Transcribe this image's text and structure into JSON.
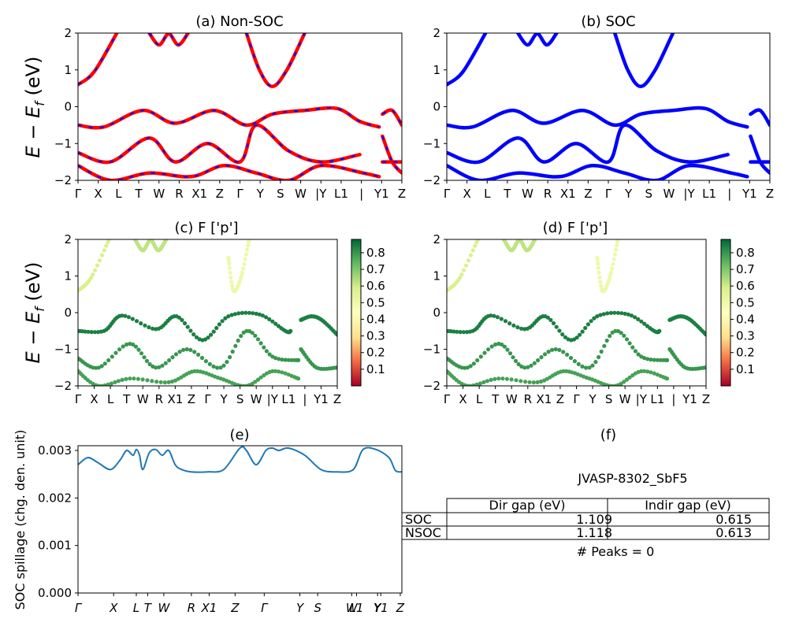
{
  "figure": {
    "ylabel_band": "E − E",
    "ylabel_band_sub": "f",
    "ylabel_band_unit": " (eV)",
    "ylabel_spillage": "SOC spillage (chg. den. unit)"
  },
  "colors": {
    "nonsoc_line": "#ff0000",
    "nonsoc_dash": "#0000ff",
    "soc_line": "#0000ff",
    "spillage_line": "#1f77b4",
    "colormap": [
      "#a50026",
      "#f46d43",
      "#fee08b",
      "#ffffbf",
      "#d9ef8b",
      "#66bd63",
      "#006837"
    ]
  },
  "kpath_ticks": {
    "top": [
      "Γ",
      "X",
      "L",
      "T",
      "W",
      "R",
      "X1",
      "Z",
      "Γ",
      "Y",
      "S",
      "W",
      "|Y",
      "L1",
      "|",
      "Y1",
      "Z"
    ],
    "bottom": [
      "Γ",
      "X",
      "L",
      "T",
      "W",
      "R",
      "X1",
      "Z",
      "Γ",
      "Y",
      "S",
      "W",
      "L1",
      "Y",
      "Y1",
      "Z"
    ]
  },
  "chart_data": [
    {
      "id": "a",
      "type": "line",
      "title": "(a) Non-SOC",
      "ylim": [
        -2,
        2
      ],
      "yticks": [
        "2",
        "1",
        "0",
        "−1",
        "−2"
      ],
      "series": [
        {
          "x": [
            0,
            0.05,
            0.12
          ],
          "y": [
            0.6,
            0.95,
            2.0
          ]
        },
        {
          "x": [
            0.22,
            0.25,
            0.28,
            0.31,
            0.34
          ],
          "y": [
            2.0,
            1.68,
            1.98,
            1.68,
            2.0
          ]
        },
        {
          "x": [
            0.52,
            0.56,
            0.6,
            0.645,
            0.7
          ],
          "y": [
            2.0,
            1.0,
            0.55,
            1.0,
            2.0
          ]
        },
        {
          "x": [
            0,
            0.08,
            0.2,
            0.3,
            0.42,
            0.52,
            0.6,
            0.7,
            0.8,
            0.87,
            0.93
          ],
          "y": [
            -0.5,
            -0.55,
            -0.1,
            -0.45,
            -0.1,
            -0.5,
            -0.2,
            -0.1,
            -0.05,
            -0.4,
            -0.55
          ]
        },
        {
          "x": [
            0,
            0.1,
            0.22,
            0.3,
            0.4,
            0.5,
            0.55,
            0.65,
            0.75,
            0.87
          ],
          "y": [
            -1.25,
            -1.5,
            -0.85,
            -1.5,
            -1.0,
            -1.5,
            -0.5,
            -1.2,
            -1.5,
            -1.3
          ]
        },
        {
          "x": [
            0,
            0.1,
            0.22,
            0.35,
            0.45,
            0.55,
            0.65,
            0.75,
            0.88,
            0.93
          ],
          "y": [
            -1.6,
            -2.0,
            -1.8,
            -1.9,
            -1.6,
            -1.8,
            -2.0,
            -1.6,
            -1.8,
            -1.9
          ]
        },
        {
          "x": [
            0.94,
            0.97,
            1.0
          ],
          "y": [
            -0.8,
            -1.5,
            -1.8
          ]
        },
        {
          "x": [
            0.94,
            0.97,
            1.0
          ],
          "y": [
            -0.2,
            -0.1,
            -0.5
          ]
        },
        {
          "x": [
            0.94,
            1.0
          ],
          "y": [
            -1.5,
            -1.5
          ]
        }
      ]
    },
    {
      "id": "b",
      "type": "line",
      "title": "(b) SOC",
      "ylim": [
        -2,
        2
      ],
      "yticks": [
        "2",
        "1",
        "0",
        "−1",
        "−2"
      ],
      "series": [
        {
          "x": [
            0,
            0.05,
            0.12
          ],
          "y": [
            0.6,
            0.95,
            2.0
          ]
        },
        {
          "x": [
            0.22,
            0.25,
            0.28,
            0.31,
            0.34
          ],
          "y": [
            2.0,
            1.68,
            1.98,
            1.68,
            2.0
          ]
        },
        {
          "x": [
            0.52,
            0.56,
            0.6,
            0.645,
            0.7
          ],
          "y": [
            2.0,
            1.0,
            0.55,
            1.0,
            2.0
          ]
        },
        {
          "x": [
            0,
            0.08,
            0.2,
            0.3,
            0.42,
            0.52,
            0.6,
            0.7,
            0.8,
            0.87,
            0.93
          ],
          "y": [
            -0.5,
            -0.55,
            -0.1,
            -0.45,
            -0.1,
            -0.5,
            -0.2,
            -0.1,
            -0.05,
            -0.4,
            -0.55
          ]
        },
        {
          "x": [
            0,
            0.1,
            0.22,
            0.3,
            0.4,
            0.5,
            0.55,
            0.65,
            0.75,
            0.87
          ],
          "y": [
            -1.25,
            -1.5,
            -0.85,
            -1.5,
            -1.0,
            -1.5,
            -0.5,
            -1.2,
            -1.5,
            -1.3
          ]
        },
        {
          "x": [
            0,
            0.1,
            0.22,
            0.35,
            0.45,
            0.55,
            0.65,
            0.75,
            0.88,
            0.93
          ],
          "y": [
            -1.6,
            -2.0,
            -1.8,
            -1.9,
            -1.6,
            -1.8,
            -2.0,
            -1.6,
            -1.8,
            -1.9
          ]
        },
        {
          "x": [
            0.94,
            0.97,
            1.0
          ],
          "y": [
            -0.8,
            -1.5,
            -1.8
          ]
        },
        {
          "x": [
            0.94,
            0.97,
            1.0
          ],
          "y": [
            -0.2,
            -0.1,
            -0.5
          ]
        },
        {
          "x": [
            0.94,
            1.0
          ],
          "y": [
            -1.5,
            -1.5
          ]
        }
      ]
    },
    {
      "id": "c",
      "type": "scatter",
      "title": "(c)  F ['p']",
      "ylim": [
        -2,
        2
      ],
      "yticks": [
        "2",
        "1",
        "0",
        "−1",
        "−2"
      ],
      "colorbar_ticks": [
        "0.8",
        "0.7",
        "0.6",
        "0.5",
        "0.4",
        "0.3",
        "0.2",
        "0.1"
      ],
      "colorbar_range": [
        0.0,
        0.88
      ],
      "bands": [
        {
          "x": [
            0,
            0.05,
            0.12
          ],
          "y": [
            0.6,
            0.95,
            2.0
          ],
          "c": 0.58
        },
        {
          "x": [
            0.22,
            0.25,
            0.28,
            0.31,
            0.34
          ],
          "y": [
            2.0,
            1.7,
            1.98,
            1.7,
            2.0
          ],
          "c": 0.62
        },
        {
          "x": [
            0.58,
            0.6,
            0.63,
            0.66
          ],
          "y": [
            1.5,
            0.6,
            1.0,
            2.0
          ],
          "c": 0.5
        },
        {
          "x": [
            0,
            0.1,
            0.17,
            0.3,
            0.38,
            0.48,
            0.58,
            0.7,
            0.8,
            0.82
          ],
          "y": [
            -0.5,
            -0.5,
            -0.08,
            -0.45,
            -0.1,
            -0.75,
            -0.1,
            -0.05,
            -0.5,
            -0.5
          ],
          "c": 0.84
        },
        {
          "x": [
            0,
            0.08,
            0.2,
            0.3,
            0.42,
            0.55,
            0.65,
            0.75,
            0.85
          ],
          "y": [
            -1.25,
            -1.5,
            -0.85,
            -1.5,
            -1.0,
            -1.5,
            -0.5,
            -1.2,
            -1.3
          ],
          "c": 0.8
        },
        {
          "x": [
            0,
            0.08,
            0.2,
            0.35,
            0.45,
            0.55,
            0.65,
            0.75,
            0.85
          ],
          "y": [
            -1.6,
            -2.0,
            -1.8,
            -1.9,
            -1.6,
            -1.8,
            -2.0,
            -1.6,
            -1.8
          ],
          "c": 0.78
        },
        {
          "x": [
            0.86,
            0.9,
            0.94,
            1.0
          ],
          "y": [
            -0.2,
            -0.1,
            -0.2,
            -0.6
          ],
          "c": 0.84
        },
        {
          "x": [
            0.86,
            0.92,
            1.0
          ],
          "y": [
            -1.0,
            -1.5,
            -1.5
          ],
          "c": 0.8
        }
      ]
    },
    {
      "id": "d",
      "type": "scatter",
      "title": "(d) F ['p']",
      "ylim": [
        -2,
        2
      ],
      "yticks": [
        "2",
        "1",
        "0",
        "−1",
        "−2"
      ],
      "colorbar_ticks": [
        "0.8",
        "0.7",
        "0.6",
        "0.5",
        "0.4",
        "0.3",
        "0.2",
        "0.1"
      ],
      "colorbar_range": [
        0.0,
        0.88
      ],
      "bands": [
        {
          "x": [
            0,
            0.05,
            0.12
          ],
          "y": [
            0.6,
            0.95,
            2.0
          ],
          "c": 0.58
        },
        {
          "x": [
            0.22,
            0.25,
            0.28,
            0.31,
            0.34
          ],
          "y": [
            2.0,
            1.7,
            1.98,
            1.7,
            2.0
          ],
          "c": 0.62
        },
        {
          "x": [
            0.58,
            0.6,
            0.63,
            0.66
          ],
          "y": [
            1.5,
            0.6,
            1.0,
            2.0
          ],
          "c": 0.5
        },
        {
          "x": [
            0,
            0.1,
            0.17,
            0.3,
            0.38,
            0.48,
            0.58,
            0.7,
            0.8,
            0.82
          ],
          "y": [
            -0.5,
            -0.5,
            -0.08,
            -0.45,
            -0.1,
            -0.75,
            -0.1,
            -0.05,
            -0.5,
            -0.5
          ],
          "c": 0.84
        },
        {
          "x": [
            0,
            0.08,
            0.2,
            0.3,
            0.42,
            0.55,
            0.65,
            0.75,
            0.85
          ],
          "y": [
            -1.25,
            -1.5,
            -0.85,
            -1.5,
            -1.0,
            -1.5,
            -0.5,
            -1.2,
            -1.3
          ],
          "c": 0.8
        },
        {
          "x": [
            0,
            0.08,
            0.2,
            0.35,
            0.45,
            0.55,
            0.65,
            0.75,
            0.85
          ],
          "y": [
            -1.6,
            -2.0,
            -1.8,
            -1.9,
            -1.6,
            -1.8,
            -2.0,
            -1.6,
            -1.8
          ],
          "c": 0.78
        },
        {
          "x": [
            0.86,
            0.9,
            0.94,
            1.0
          ],
          "y": [
            -0.2,
            -0.1,
            -0.2,
            -0.6
          ],
          "c": 0.84
        },
        {
          "x": [
            0.86,
            0.92,
            1.0
          ],
          "y": [
            -1.0,
            -1.5,
            -1.5
          ],
          "c": 0.8
        }
      ]
    },
    {
      "id": "e",
      "type": "line",
      "title": "(e)",
      "ylabel": "SOC spillage (chg. den. unit)",
      "ylim": [
        0,
        0.0031
      ],
      "yticks": [
        "0.003",
        "0.002",
        "0.001",
        "0.000"
      ],
      "xticks": [
        "Γ",
        "X",
        "L",
        "T",
        "W",
        "R",
        "X1",
        "Z",
        "Γ",
        "Y",
        "S",
        "W",
        "L1",
        "Y",
        "Y1",
        "Z"
      ],
      "series": [
        {
          "name": "spillage",
          "x": [
            0,
            0.03,
            0.06,
            0.1,
            0.13,
            0.15,
            0.17,
            0.18,
            0.19,
            0.2,
            0.22,
            0.24,
            0.26,
            0.28,
            0.3,
            0.32,
            0.35,
            0.4,
            0.45,
            0.5,
            0.52,
            0.55,
            0.58,
            0.6,
            0.62,
            0.65,
            0.7,
            0.75,
            0.8,
            0.85,
            0.88,
            0.92,
            0.96,
            0.98,
            1.0
          ],
          "y": [
            0.0027,
            0.00285,
            0.00275,
            0.0026,
            0.0028,
            0.003,
            0.0029,
            0.00302,
            0.0029,
            0.0026,
            0.00295,
            0.00302,
            0.0029,
            0.003,
            0.0027,
            0.0026,
            0.00255,
            0.00255,
            0.0026,
            0.00305,
            0.003,
            0.0027,
            0.003,
            0.00305,
            0.003,
            0.00305,
            0.0029,
            0.0026,
            0.00255,
            0.0026,
            0.00302,
            0.00302,
            0.00285,
            0.00258,
            0.00255
          ]
        }
      ]
    }
  ],
  "table": {
    "title": "(f)",
    "caption": "JVASP-8302_SbF5",
    "headers": [
      "Dir gap (eV)",
      "Indir gap (eV)"
    ],
    "rows": [
      {
        "label": "SOC",
        "dir": "1.109",
        "indir": "0.615"
      },
      {
        "label": "NSOC",
        "dir": "1.118",
        "indir": "0.613"
      }
    ],
    "footer": "# Peaks = 0"
  }
}
